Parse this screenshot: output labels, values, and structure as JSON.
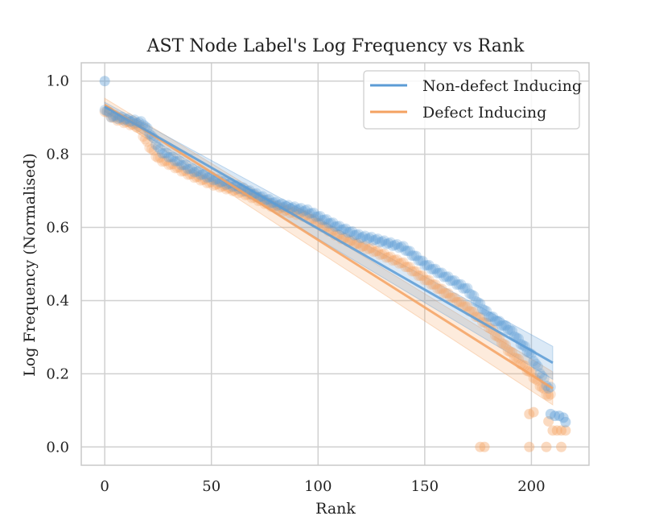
{
  "chart_data": {
    "type": "scatter",
    "title": "AST Node Label's Log Frequency vs Rank",
    "xlabel": "Rank",
    "ylabel": "Log Frequency (Normalised)",
    "xlim": [
      -11,
      227
    ],
    "ylim": [
      -0.05,
      1.05
    ],
    "xticks": [
      0,
      50,
      100,
      150,
      200
    ],
    "yticks": [
      0.0,
      0.2,
      0.4,
      0.6,
      0.8,
      1.0
    ],
    "xtick_labels": [
      "0",
      "50",
      "100",
      "150",
      "200"
    ],
    "ytick_labels": [
      "0.0",
      "0.2",
      "0.4",
      "0.6",
      "0.8",
      "1.0"
    ],
    "grid": true,
    "legend_position": "top-right",
    "series": [
      {
        "name": "Non-defect Inducing",
        "color": "#5b9bd5",
        "knots": [
          [
            0,
            0.925
          ],
          [
            3,
            0.905
          ],
          [
            18,
            0.885
          ],
          [
            22,
            0.85
          ],
          [
            26,
            0.81
          ],
          [
            40,
            0.76
          ],
          [
            50,
            0.735
          ],
          [
            65,
            0.705
          ],
          [
            80,
            0.665
          ],
          [
            95,
            0.645
          ],
          [
            110,
            0.6
          ],
          [
            120,
            0.575
          ],
          [
            125,
            0.57
          ],
          [
            140,
            0.545
          ],
          [
            150,
            0.5
          ],
          [
            160,
            0.465
          ],
          [
            170,
            0.43
          ],
          [
            180,
            0.36
          ],
          [
            190,
            0.32
          ],
          [
            200,
            0.25
          ],
          [
            208,
            0.16
          ]
        ],
        "n_points": 210,
        "extra_points": [
          [
            0,
            1.0
          ],
          [
            209,
            0.09
          ],
          [
            211,
            0.085
          ],
          [
            213,
            0.085
          ],
          [
            215,
            0.08
          ],
          [
            216,
            0.068
          ]
        ],
        "fit": {
          "x0": 0,
          "y0": 0.93,
          "x1": 210,
          "y1": 0.23,
          "ci_start": 0.012,
          "ci_end": 0.045
        }
      },
      {
        "name": "Defect Inducing",
        "color": "#f4a261",
        "knots": [
          [
            0,
            0.92
          ],
          [
            4,
            0.9
          ],
          [
            16,
            0.875
          ],
          [
            20,
            0.83
          ],
          [
            25,
            0.79
          ],
          [
            40,
            0.745
          ],
          [
            50,
            0.72
          ],
          [
            65,
            0.695
          ],
          [
            80,
            0.655
          ],
          [
            95,
            0.63
          ],
          [
            110,
            0.575
          ],
          [
            120,
            0.55
          ],
          [
            125,
            0.54
          ],
          [
            140,
            0.5
          ],
          [
            150,
            0.46
          ],
          [
            160,
            0.42
          ],
          [
            170,
            0.38
          ],
          [
            180,
            0.33
          ],
          [
            190,
            0.26
          ],
          [
            200,
            0.2
          ],
          [
            208,
            0.14
          ]
        ],
        "n_points": 210,
        "extra_points": [
          [
            176,
            0.0
          ],
          [
            178,
            0.0
          ],
          [
            199,
            0.09
          ],
          [
            201,
            0.095
          ],
          [
            199,
            0.0
          ],
          [
            207,
            0.0
          ],
          [
            208,
            0.07
          ],
          [
            210,
            0.045
          ],
          [
            212,
            0.045
          ],
          [
            214,
            0.045
          ],
          [
            214,
            0.0
          ],
          [
            216,
            0.045
          ]
        ],
        "fit": {
          "x0": 0,
          "y0": 0.935,
          "x1": 210,
          "y1": 0.16,
          "ci_start": 0.018,
          "ci_end": 0.045
        }
      }
    ]
  }
}
